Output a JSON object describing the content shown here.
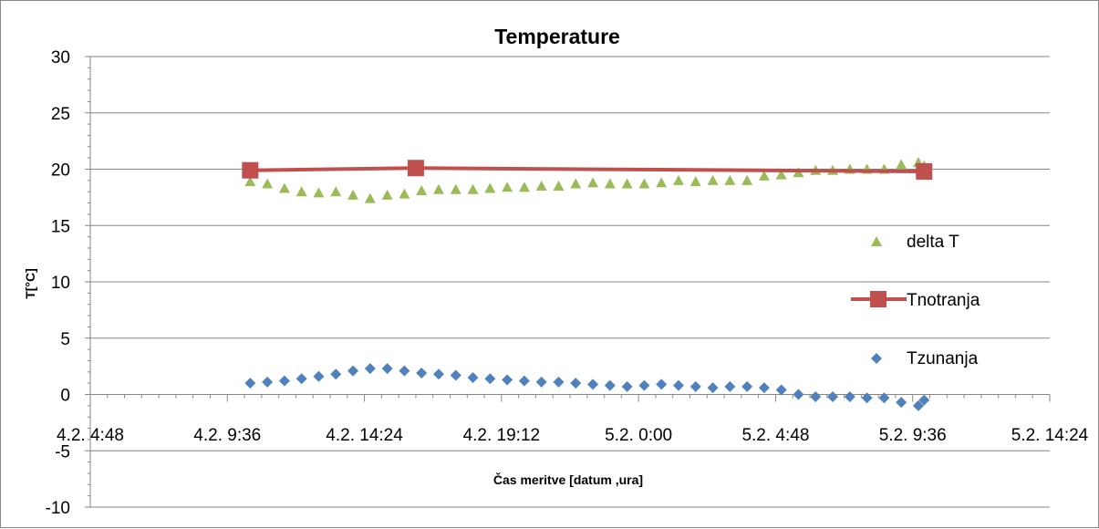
{
  "chart_data": {
    "type": "line",
    "title": "Temperature",
    "xlabel": "Čas meritve [datum ,ura]",
    "ylabel": "T[°C]",
    "ylim": [
      -10,
      30
    ],
    "yticks": [
      30,
      25,
      20,
      15,
      10,
      5,
      0,
      -5,
      -10
    ],
    "x_tick_labels": [
      "4.2. 4:48",
      "4.2. 9:36",
      "4.2. 14:24",
      "4.2. 19:12",
      "5.2. 0:00",
      "5.2. 4:48",
      "5.2. 9:36",
      "5.2. 14:24"
    ],
    "grid": "horizontal",
    "legend_position": "right",
    "colors": {
      "delta_T": "#9BBB59",
      "Tnotranja": "#C0504D",
      "Tzunanja": "#4F81BD",
      "grid": "#868686"
    },
    "series": [
      {
        "name": "delta T",
        "marker": "triangle",
        "x": [
          "4.2. 10:24",
          "4.2. 11:00",
          "4.2. 11:36",
          "4.2. 12:12",
          "4.2. 12:48",
          "4.2. 13:24",
          "4.2. 14:00",
          "4.2. 14:36",
          "4.2. 15:12",
          "4.2. 15:48",
          "4.2. 16:24",
          "4.2. 17:00",
          "4.2. 17:36",
          "4.2. 18:12",
          "4.2. 18:48",
          "4.2. 19:24",
          "4.2. 20:00",
          "4.2. 20:36",
          "4.2. 21:12",
          "4.2. 21:48",
          "4.2. 22:24",
          "4.2. 23:00",
          "4.2. 23:36",
          "5.2. 0:12",
          "5.2. 0:48",
          "5.2. 1:24",
          "5.2. 2:00",
          "5.2. 2:36",
          "5.2. 3:12",
          "5.2. 3:48",
          "5.2. 4:24",
          "5.2. 5:00",
          "5.2. 5:36",
          "5.2. 6:12",
          "5.2. 6:48",
          "5.2. 7:24",
          "5.2. 8:00",
          "5.2. 8:36",
          "5.2. 9:12",
          "5.2. 9:48",
          "5.2. 10:00"
        ],
        "values": [
          18.9,
          18.7,
          18.3,
          18.0,
          17.9,
          18.0,
          17.7,
          17.4,
          17.7,
          17.8,
          18.1,
          18.2,
          18.2,
          18.2,
          18.3,
          18.4,
          18.4,
          18.5,
          18.5,
          18.7,
          18.8,
          18.7,
          18.7,
          18.7,
          18.8,
          19.0,
          18.9,
          19.0,
          19.0,
          19.0,
          19.4,
          19.5,
          19.7,
          19.9,
          19.9,
          20.0,
          20.0,
          20.0,
          20.4,
          20.6,
          20.3
        ]
      },
      {
        "name": "Tnotranja",
        "marker": "square",
        "x": [
          "4.2. 10:24",
          "4.2. 16:12",
          "5.2. 10:00"
        ],
        "values": [
          19.9,
          20.1,
          19.8
        ]
      },
      {
        "name": "Tzunanja",
        "marker": "diamond",
        "x": [
          "4.2. 10:24",
          "4.2. 11:00",
          "4.2. 11:36",
          "4.2. 12:12",
          "4.2. 12:48",
          "4.2. 13:24",
          "4.2. 14:00",
          "4.2. 14:36",
          "4.2. 15:12",
          "4.2. 15:48",
          "4.2. 16:24",
          "4.2. 17:00",
          "4.2. 17:36",
          "4.2. 18:12",
          "4.2. 18:48",
          "4.2. 19:24",
          "4.2. 20:00",
          "4.2. 20:36",
          "4.2. 21:12",
          "4.2. 21:48",
          "4.2. 22:24",
          "4.2. 23:00",
          "4.2. 23:36",
          "5.2. 0:12",
          "5.2. 0:48",
          "5.2. 1:24",
          "5.2. 2:00",
          "5.2. 2:36",
          "5.2. 3:12",
          "5.2. 3:48",
          "5.2. 4:24",
          "5.2. 5:00",
          "5.2. 5:36",
          "5.2. 6:12",
          "5.2. 6:48",
          "5.2. 7:24",
          "5.2. 8:00",
          "5.2. 8:36",
          "5.2. 9:12",
          "5.2. 9:48",
          "5.2. 10:00"
        ],
        "values": [
          1.0,
          1.1,
          1.2,
          1.4,
          1.6,
          1.8,
          2.1,
          2.3,
          2.3,
          2.1,
          1.9,
          1.8,
          1.7,
          1.5,
          1.4,
          1.3,
          1.2,
          1.1,
          1.1,
          1.0,
          0.9,
          0.8,
          0.7,
          0.8,
          0.9,
          0.8,
          0.7,
          0.6,
          0.7,
          0.7,
          0.6,
          0.4,
          0.0,
          -0.2,
          -0.2,
          -0.2,
          -0.3,
          -0.3,
          -0.7,
          -1.0,
          -0.5
        ]
      }
    ]
  }
}
